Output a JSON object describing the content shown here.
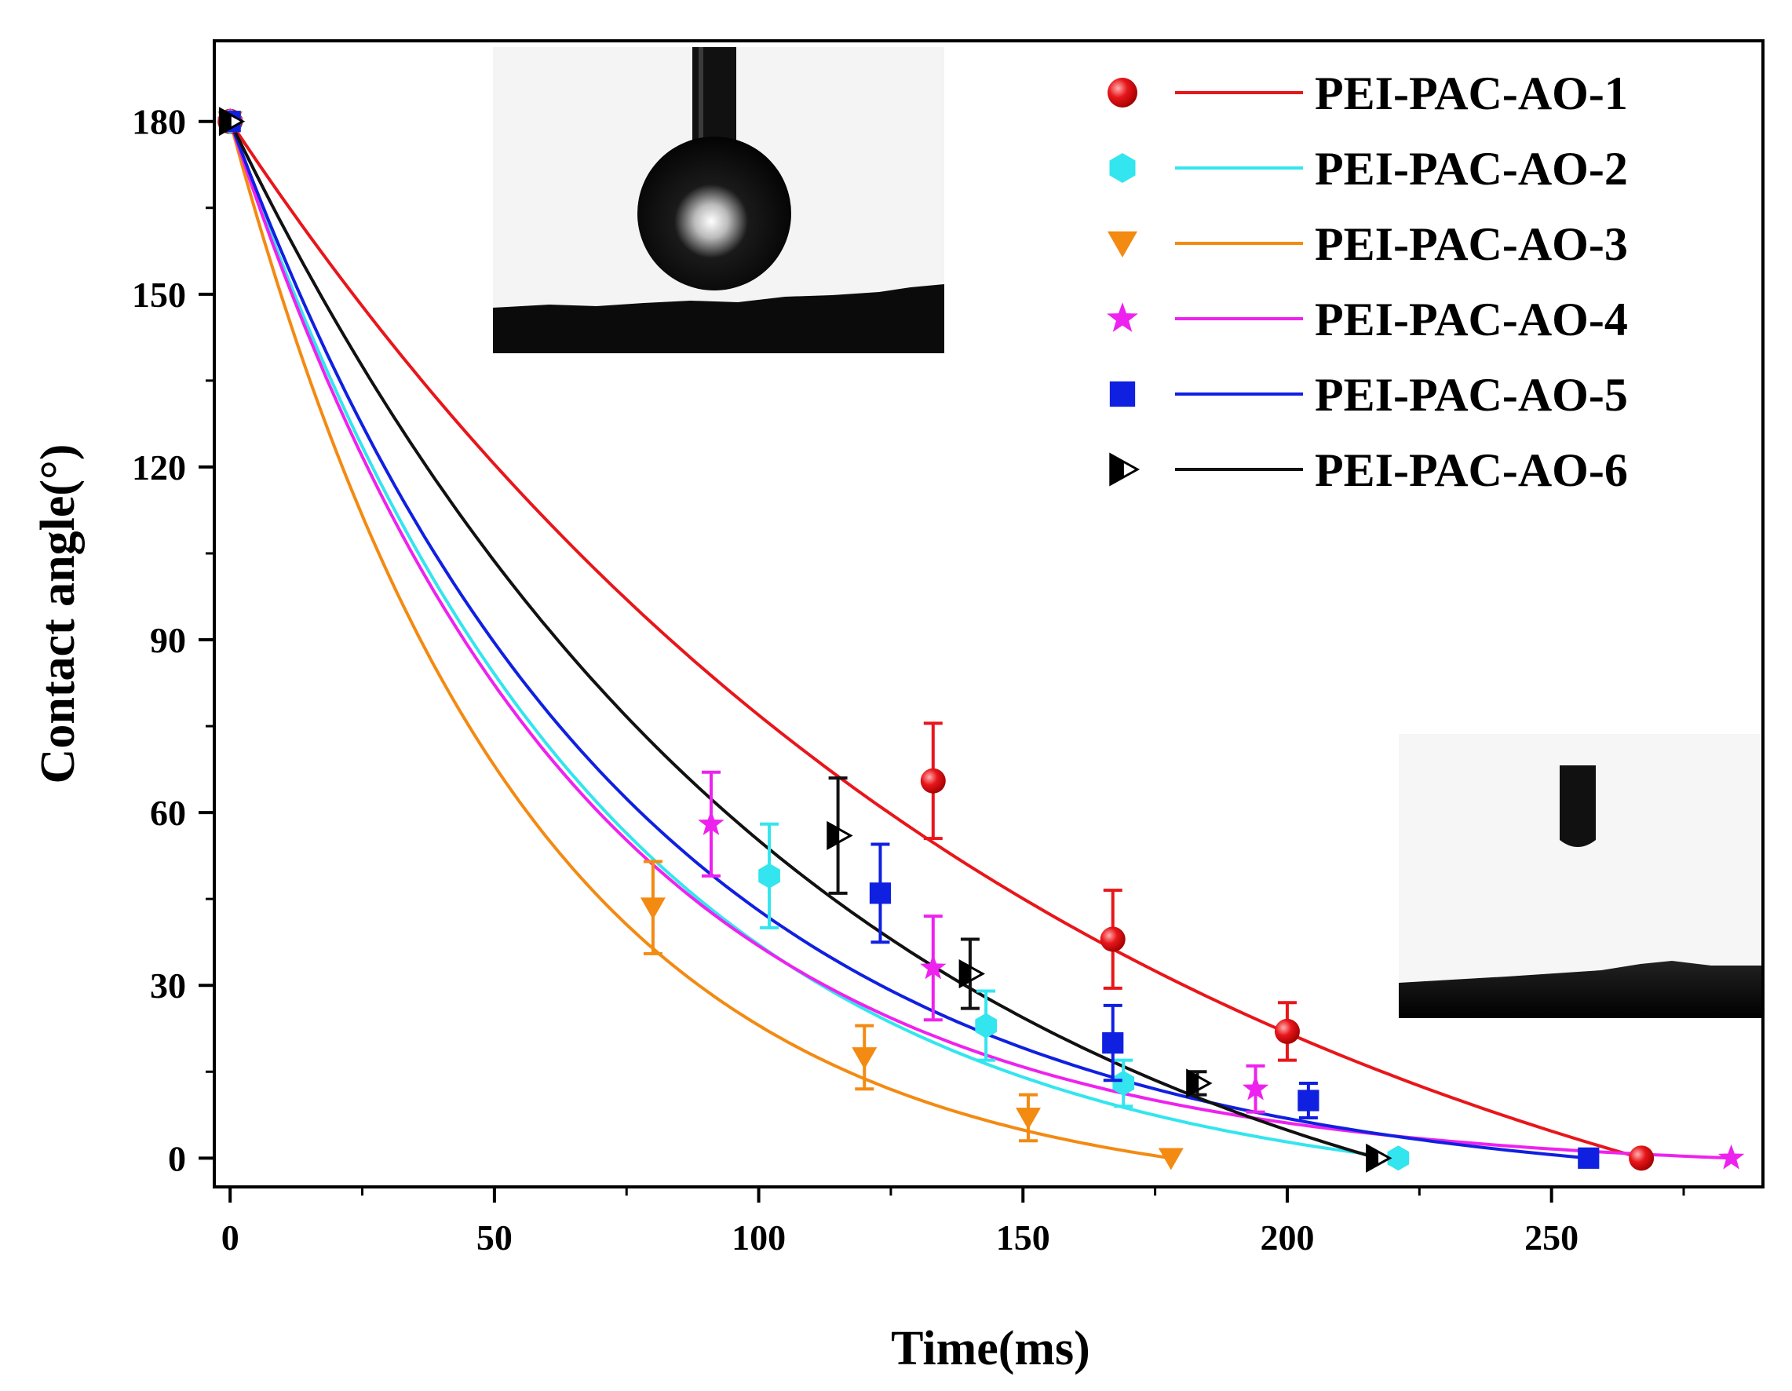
{
  "chart_data": {
    "type": "line",
    "title": "",
    "xlabel": "Time(ms)",
    "ylabel": "Contact angle(°)",
    "xlim": [
      -3,
      290
    ],
    "ylim": [
      -5,
      194
    ],
    "xticks": [
      0,
      50,
      100,
      150,
      200,
      250
    ],
    "yticks": [
      0,
      30,
      60,
      90,
      120,
      150,
      180
    ],
    "xtick_labels": [
      "0",
      "50",
      "100",
      "150",
      "200",
      "250"
    ],
    "ytick_labels": [
      "0",
      "30",
      "60",
      "90",
      "120",
      "150",
      "180"
    ],
    "grid": false,
    "legend_position": "top-right",
    "insets": [
      {
        "name": "droplet-before-contact",
        "position": "top-center"
      },
      {
        "name": "droplet-after-spreading",
        "position": "bottom-right"
      }
    ],
    "series": [
      {
        "name": "PEI-PAC-AO-1",
        "color": "#e8161b",
        "marker": "circle",
        "x": [
          0,
          133,
          167,
          200,
          267
        ],
        "y": [
          180,
          65.5,
          38,
          22,
          0
        ],
        "err": [
          0,
          10,
          8.5,
          5,
          0
        ],
        "fit_end": 267,
        "fit_tau": 160
      },
      {
        "name": "PEI-PAC-AO-2",
        "color": "#33e5ee",
        "marker": "hexagon",
        "x": [
          0,
          102,
          143,
          169,
          221
        ],
        "y": [
          180,
          49,
          23,
          13,
          0
        ],
        "err": [
          0,
          9,
          6,
          4,
          0
        ],
        "fit_end": 221,
        "fit_tau": 70
      },
      {
        "name": "PEI-PAC-AO-3",
        "color": "#f38a12",
        "marker": "triangle-down",
        "x": [
          0,
          80,
          120,
          151,
          178
        ],
        "y": [
          180,
          43.5,
          17.5,
          7,
          0
        ],
        "err": [
          0,
          8,
          5.5,
          4,
          0
        ],
        "fit_end": 178,
        "fit_tau": 55
      },
      {
        "name": "PEI-PAC-AO-4",
        "color": "#ee22ee",
        "marker": "star",
        "x": [
          0,
          91,
          133,
          194,
          284
        ],
        "y": [
          180,
          58,
          33,
          12,
          0
        ],
        "err": [
          0,
          9,
          9,
          4,
          0
        ],
        "fit_end": 284,
        "fit_tau": 65
      },
      {
        "name": "PEI-PAC-AO-5",
        "color": "#1020e0",
        "marker": "square",
        "x": [
          0,
          123,
          167,
          204,
          257
        ],
        "y": [
          180,
          46,
          20,
          10,
          0
        ],
        "err": [
          0,
          8.5,
          6.5,
          3,
          0
        ],
        "fit_end": 257,
        "fit_tau": 75
      },
      {
        "name": "PEI-PAC-AO-6",
        "color": "#111111",
        "marker": "triangle-right-half",
        "x": [
          0,
          115,
          140,
          183,
          217
        ],
        "y": [
          180,
          56,
          32,
          13,
          0
        ],
        "err": [
          0,
          10,
          6,
          2,
          0
        ],
        "fit_end": 217,
        "fit_tau": 110
      }
    ]
  }
}
